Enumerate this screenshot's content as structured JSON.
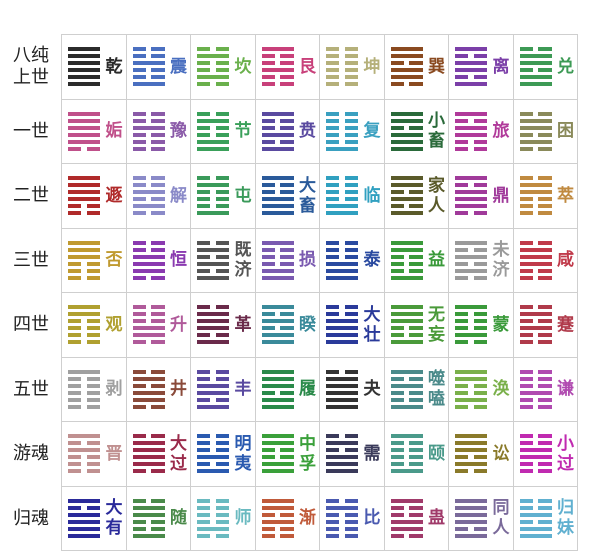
{
  "table": {
    "rows": [
      {
        "label": "八纯上世",
        "cells": [
          {
            "name": "乾",
            "color": "#2b2b2b"
          },
          {
            "name": "震",
            "color": "#4a6fc0"
          },
          {
            "name": "坎",
            "color": "#6ab04c"
          },
          {
            "name": "艮",
            "color": "#c8407a"
          },
          {
            "name": "坤",
            "color": "#b5b07a"
          },
          {
            "name": "巽",
            "color": "#8a4a20"
          },
          {
            "name": "离",
            "color": "#7b3fa8"
          },
          {
            "name": "兑",
            "color": "#3d9a55"
          }
        ]
      },
      {
        "label": "一世",
        "cells": [
          {
            "name": "姤",
            "color": "#c0508a"
          },
          {
            "name": "豫",
            "color": "#8a5aa8"
          },
          {
            "name": "节",
            "color": "#3aa05a"
          },
          {
            "name": "贲",
            "color": "#5a4aa0"
          },
          {
            "name": "复",
            "color": "#3aa0c0"
          },
          {
            "name": "小畜",
            "color": "#2a6a3a"
          },
          {
            "name": "旅",
            "color": "#b03a9a"
          },
          {
            "name": "困",
            "color": "#8a8a5a"
          }
        ]
      },
      {
        "label": "二世",
        "cells": [
          {
            "name": "遯",
            "color": "#b02a2a"
          },
          {
            "name": "解",
            "color": "#8a8ac8"
          },
          {
            "name": "屯",
            "color": "#3a9a5a"
          },
          {
            "name": "大畜",
            "color": "#2a5a9a"
          },
          {
            "name": "临",
            "color": "#30a0c0"
          },
          {
            "name": "家人",
            "color": "#5a5a2a"
          },
          {
            "name": "鼎",
            "color": "#a03a9a"
          },
          {
            "name": "萃",
            "color": "#c08a40"
          }
        ]
      },
      {
        "label": "三世",
        "cells": [
          {
            "name": "否",
            "color": "#c09a30"
          },
          {
            "name": "恒",
            "color": "#8a3ab0"
          },
          {
            "name": "既济",
            "color": "#555555"
          },
          {
            "name": "损",
            "color": "#7a5ab0"
          },
          {
            "name": "泰",
            "color": "#2a4aa0"
          },
          {
            "name": "益",
            "color": "#3a9a3a"
          },
          {
            "name": "未济",
            "color": "#9a9a9a"
          },
          {
            "name": "咸",
            "color": "#c03a4a"
          }
        ]
      },
      {
        "label": "四世",
        "cells": [
          {
            "name": "观",
            "color": "#b0a030"
          },
          {
            "name": "升",
            "color": "#b05a9a"
          },
          {
            "name": "革",
            "color": "#6a2a4a"
          },
          {
            "name": "睽",
            "color": "#3a8a9a"
          },
          {
            "name": "大壮",
            "color": "#2a3a9a"
          },
          {
            "name": "无妄",
            "color": "#4a9a3a"
          },
          {
            "name": "蒙",
            "color": "#3a9a3a"
          },
          {
            "name": "蹇",
            "color": "#b03a4a"
          }
        ]
      },
      {
        "label": "五世",
        "cells": [
          {
            "name": "剥",
            "color": "#a0a0a0"
          },
          {
            "name": "井",
            "color": "#8a4a3a"
          },
          {
            "name": "丰",
            "color": "#5a4aa0"
          },
          {
            "name": "履",
            "color": "#2a8a4a"
          },
          {
            "name": "夬",
            "color": "#333333"
          },
          {
            "name": "噬嗑",
            "color": "#4a8a8a"
          },
          {
            "name": "涣",
            "color": "#7ab04a"
          },
          {
            "name": "谦",
            "color": "#b04ab0"
          }
        ]
      },
      {
        "label": "游魂",
        "cells": [
          {
            "name": "晋",
            "color": "#c09090"
          },
          {
            "name": "大过",
            "color": "#9a2a4a"
          },
          {
            "name": "明夷",
            "color": "#2a5ab0"
          },
          {
            "name": "中孚",
            "color": "#3aa03a"
          },
          {
            "name": "需",
            "color": "#3a3a5a"
          },
          {
            "name": "颐",
            "color": "#4a9a8a"
          },
          {
            "name": "讼",
            "color": "#8a7a2a"
          },
          {
            "name": "小过",
            "color": "#c02ab0"
          }
        ]
      },
      {
        "label": "归魂",
        "cells": [
          {
            "name": "大有",
            "color": "#2a2a9a"
          },
          {
            "name": "随",
            "color": "#4a8a4a"
          },
          {
            "name": "师",
            "color": "#6abac0"
          },
          {
            "name": "渐",
            "color": "#c05a3a"
          },
          {
            "name": "比",
            "color": "#4a5ab0"
          },
          {
            "name": "蛊",
            "color": "#a03a6a"
          },
          {
            "name": "同人",
            "color": "#7a6a9a"
          },
          {
            "name": "归妹",
            "color": "#60b0d0"
          }
        ]
      }
    ]
  }
}
